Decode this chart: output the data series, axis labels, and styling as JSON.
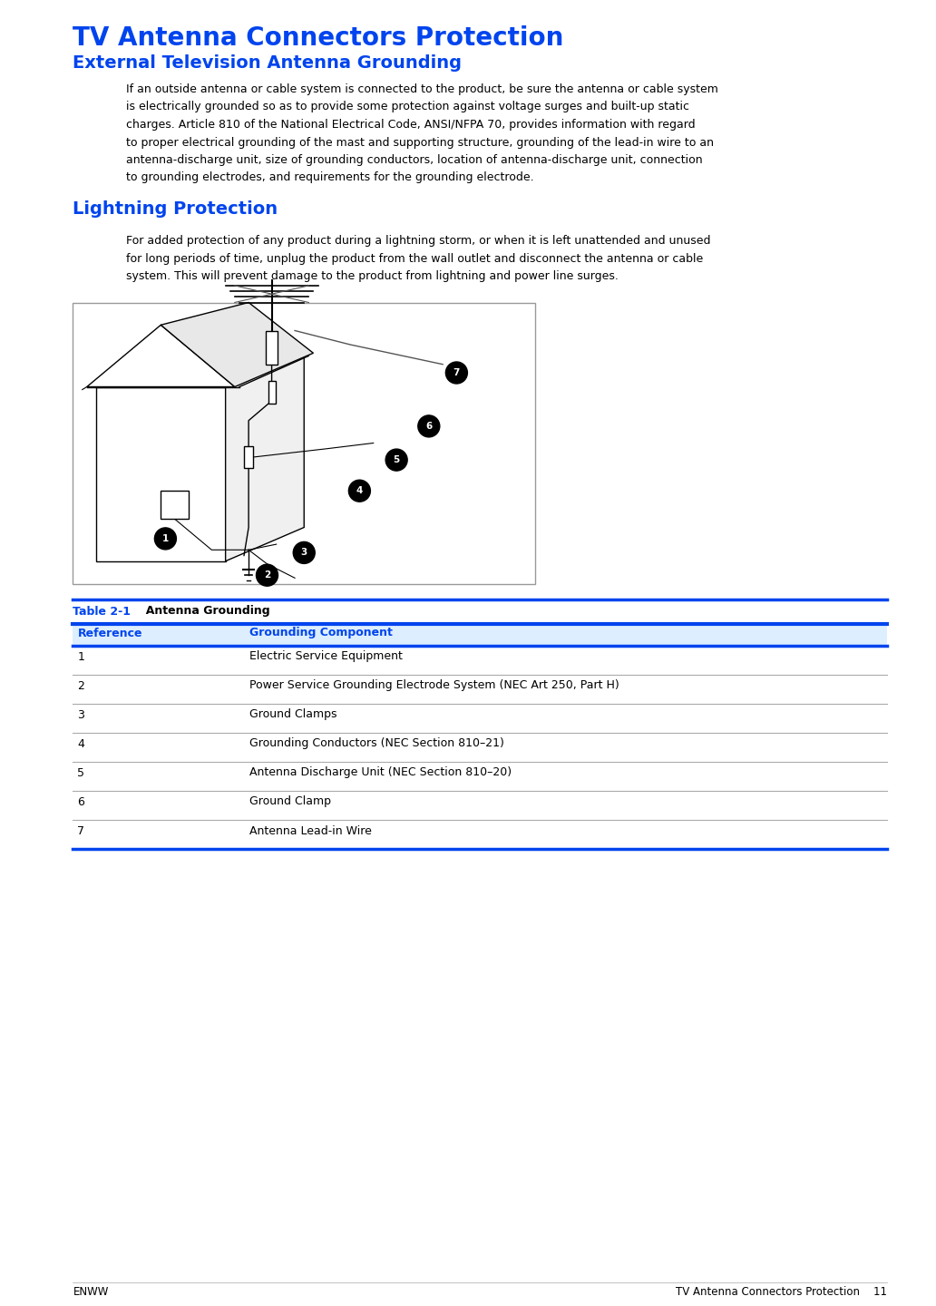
{
  "title": "TV Antenna Connectors Protection",
  "subtitle": "External Television Antenna Grounding",
  "title_color": "#0044ee",
  "subtitle_color": "#0044ee",
  "section2_title": "Lightning Protection",
  "section2_color": "#0044ee",
  "body1_lines": [
    "If an outside antenna or cable system is connected to the product, be sure the antenna or cable system",
    "is electrically grounded so as to provide some protection against voltage surges and built-up static",
    "charges. Article 810 of the National Electrical Code, ANSI/NFPA 70, provides information with regard",
    "to proper electrical grounding of the mast and supporting structure, grounding of the lead-in wire to an",
    "antenna-discharge unit, size of grounding conductors, location of antenna-discharge unit, connection",
    "to grounding electrodes, and requirements for the grounding electrode."
  ],
  "body2_lines": [
    "For added protection of any product during a lightning storm, or when it is left unattended and unused",
    "for long periods of time, unplug the product from the wall outlet and disconnect the antenna or cable",
    "system. This will prevent damage to the product from lightning and power line surges."
  ],
  "table_title_blue": "Table 2-1",
  "table_title_black": "  Antenna Grounding",
  "col1_header": "Reference",
  "col2_header": "Grounding Component",
  "header_color": "#0044ee",
  "table_rows": [
    [
      "1",
      "Electric Service Equipment"
    ],
    [
      "2",
      "Power Service Grounding Electrode System (NEC Art 250, Part H)"
    ],
    [
      "3",
      "Ground Clamps"
    ],
    [
      "4",
      "Grounding Conductors (NEC Section 810–21)"
    ],
    [
      "5",
      "Antenna Discharge Unit (NEC Section 810–20)"
    ],
    [
      "6",
      "Ground Clamp"
    ],
    [
      "7",
      "Antenna Lead-in Wire"
    ]
  ],
  "table_line_color": "#0044ee",
  "table_divider_color": "#aaaaaa",
  "footer_left": "ENWW",
  "footer_right": "TV Antenna Connectors Protection    11",
  "bg_color": "#ffffff",
  "text_color": "#000000",
  "ml": 0.078,
  "mr": 0.948,
  "il": 0.135
}
